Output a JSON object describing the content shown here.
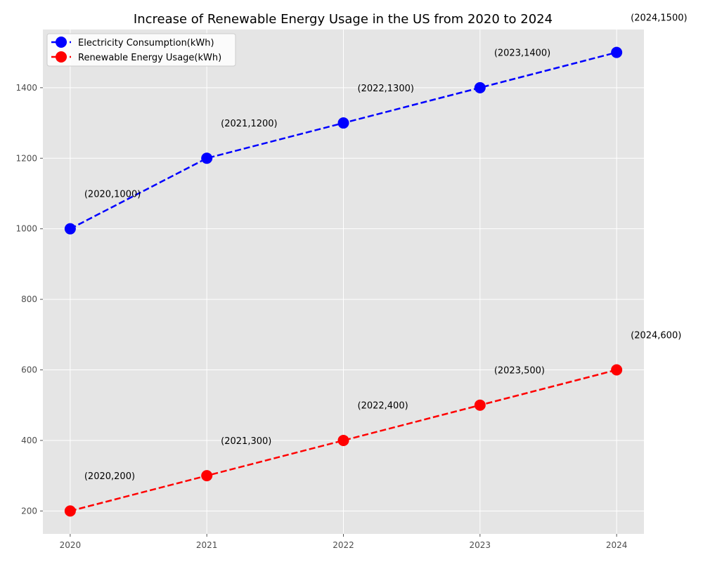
{
  "chart_data": {
    "type": "line",
    "title": "Increase of Renewable Energy Usage in the US from 2020 to 2024",
    "xlabel": "",
    "ylabel": "",
    "x": [
      2020,
      2021,
      2022,
      2023,
      2024
    ],
    "xlim": [
      2019.8,
      2024.2
    ],
    "ylim": [
      135,
      1565
    ],
    "y_ticks": [
      200,
      400,
      600,
      800,
      1000,
      1200,
      1400
    ],
    "grid": true,
    "legend_position": "upper-left",
    "series": [
      {
        "name": "Electricity Consumption(kWh)",
        "values": [
          1000,
          1200,
          1300,
          1400,
          1500
        ],
        "color": "#0000ff",
        "line_style": "dashed",
        "marker": "circle",
        "annotations": [
          "(2020,1000)",
          "(2021,1200)",
          "(2022,1300)",
          "(2023,1400)",
          "(2024,1500)"
        ]
      },
      {
        "name": "Renewable Energy Usage(kWh)",
        "values": [
          200,
          300,
          400,
          500,
          600
        ],
        "color": "#ff0000",
        "line_style": "dashed",
        "marker": "circle",
        "annotations": [
          "(2020,200)",
          "(2021,300)",
          "(2022,400)",
          "(2023,500)",
          "(2024,600)"
        ]
      }
    ]
  }
}
